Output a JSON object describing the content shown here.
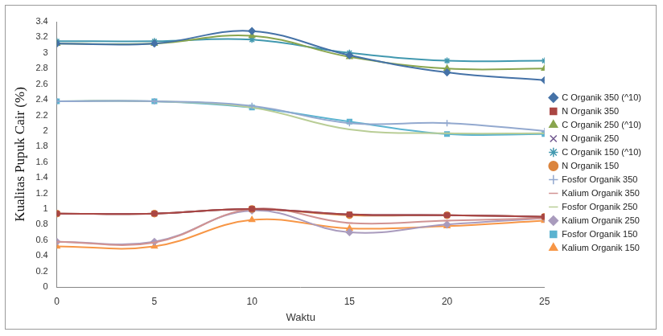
{
  "chart_data": {
    "type": "line",
    "x_label": "Waktu",
    "y_label": "Kualitas Pupuk Cair (%)",
    "x": [
      0,
      5,
      10,
      15,
      20,
      25
    ],
    "xlim": [
      0,
      25
    ],
    "xticks": [
      0,
      5,
      10,
      15,
      20,
      25
    ],
    "ylim": [
      0,
      3.4
    ],
    "yticks": [
      0,
      0.2,
      0.4,
      0.6,
      0.8,
      1,
      1.2,
      1.4,
      1.6,
      1.8,
      2,
      2.2,
      2.4,
      2.6,
      2.8,
      3,
      3.2,
      3.4
    ],
    "grid": false,
    "legend": "right",
    "series": [
      {
        "name": "C Organik 350 (^10)",
        "color": "#4572a7",
        "marker": "diamond",
        "values": [
          3.12,
          3.12,
          3.28,
          2.97,
          2.75,
          2.65
        ]
      },
      {
        "name": "N Organik 350",
        "color": "#aa4643",
        "marker": "square",
        "values": [
          0.94,
          0.94,
          1.0,
          0.93,
          0.92,
          0.9
        ]
      },
      {
        "name": "C Organik 250 (^10)",
        "color": "#89a54e",
        "marker": "triangle",
        "values": [
          3.12,
          3.12,
          3.22,
          2.95,
          2.8,
          2.8
        ]
      },
      {
        "name": "N Organik 250",
        "color": "#71588f",
        "marker": "x",
        "values": [
          0.94,
          0.94,
          1.0,
          0.93,
          0.92,
          0.9
        ]
      },
      {
        "name": "C Organik 150 (^10)",
        "color": "#4198af",
        "marker": "star",
        "values": [
          3.15,
          3.15,
          3.17,
          3.0,
          2.9,
          2.9
        ]
      },
      {
        "name": "N Organik 150",
        "color": "#db843d",
        "marker": "circle",
        "values": [
          0.94,
          0.94,
          1.0,
          0.92,
          0.92,
          0.9
        ]
      },
      {
        "name": "Fosfor Organik 350",
        "color": "#93a9cf",
        "marker": "plus",
        "values": [
          2.38,
          2.38,
          2.32,
          2.1,
          2.1,
          2.0
        ]
      },
      {
        "name": "Kalium Organik 350",
        "color": "#d19392",
        "marker": "dash",
        "values": [
          0.58,
          0.57,
          1.0,
          0.82,
          0.85,
          0.88
        ]
      },
      {
        "name": "Fosfor Organik 250",
        "color": "#b9cd96",
        "marker": "none",
        "values": [
          2.38,
          2.38,
          2.3,
          2.02,
          1.97,
          1.97
        ]
      },
      {
        "name": "Kalium Organik 250",
        "color": "#a99bbd",
        "marker": "diamond",
        "values": [
          0.58,
          0.58,
          0.98,
          0.7,
          0.8,
          0.88
        ]
      },
      {
        "name": "Fosfor Organik 150",
        "color": "#5bb3d0",
        "marker": "square",
        "values": [
          2.38,
          2.38,
          2.3,
          2.12,
          1.96,
          1.96
        ]
      },
      {
        "name": "Kalium Organik 150",
        "color": "#f79646",
        "marker": "triangle",
        "values": [
          0.52,
          0.52,
          0.86,
          0.75,
          0.78,
          0.85
        ]
      }
    ]
  }
}
